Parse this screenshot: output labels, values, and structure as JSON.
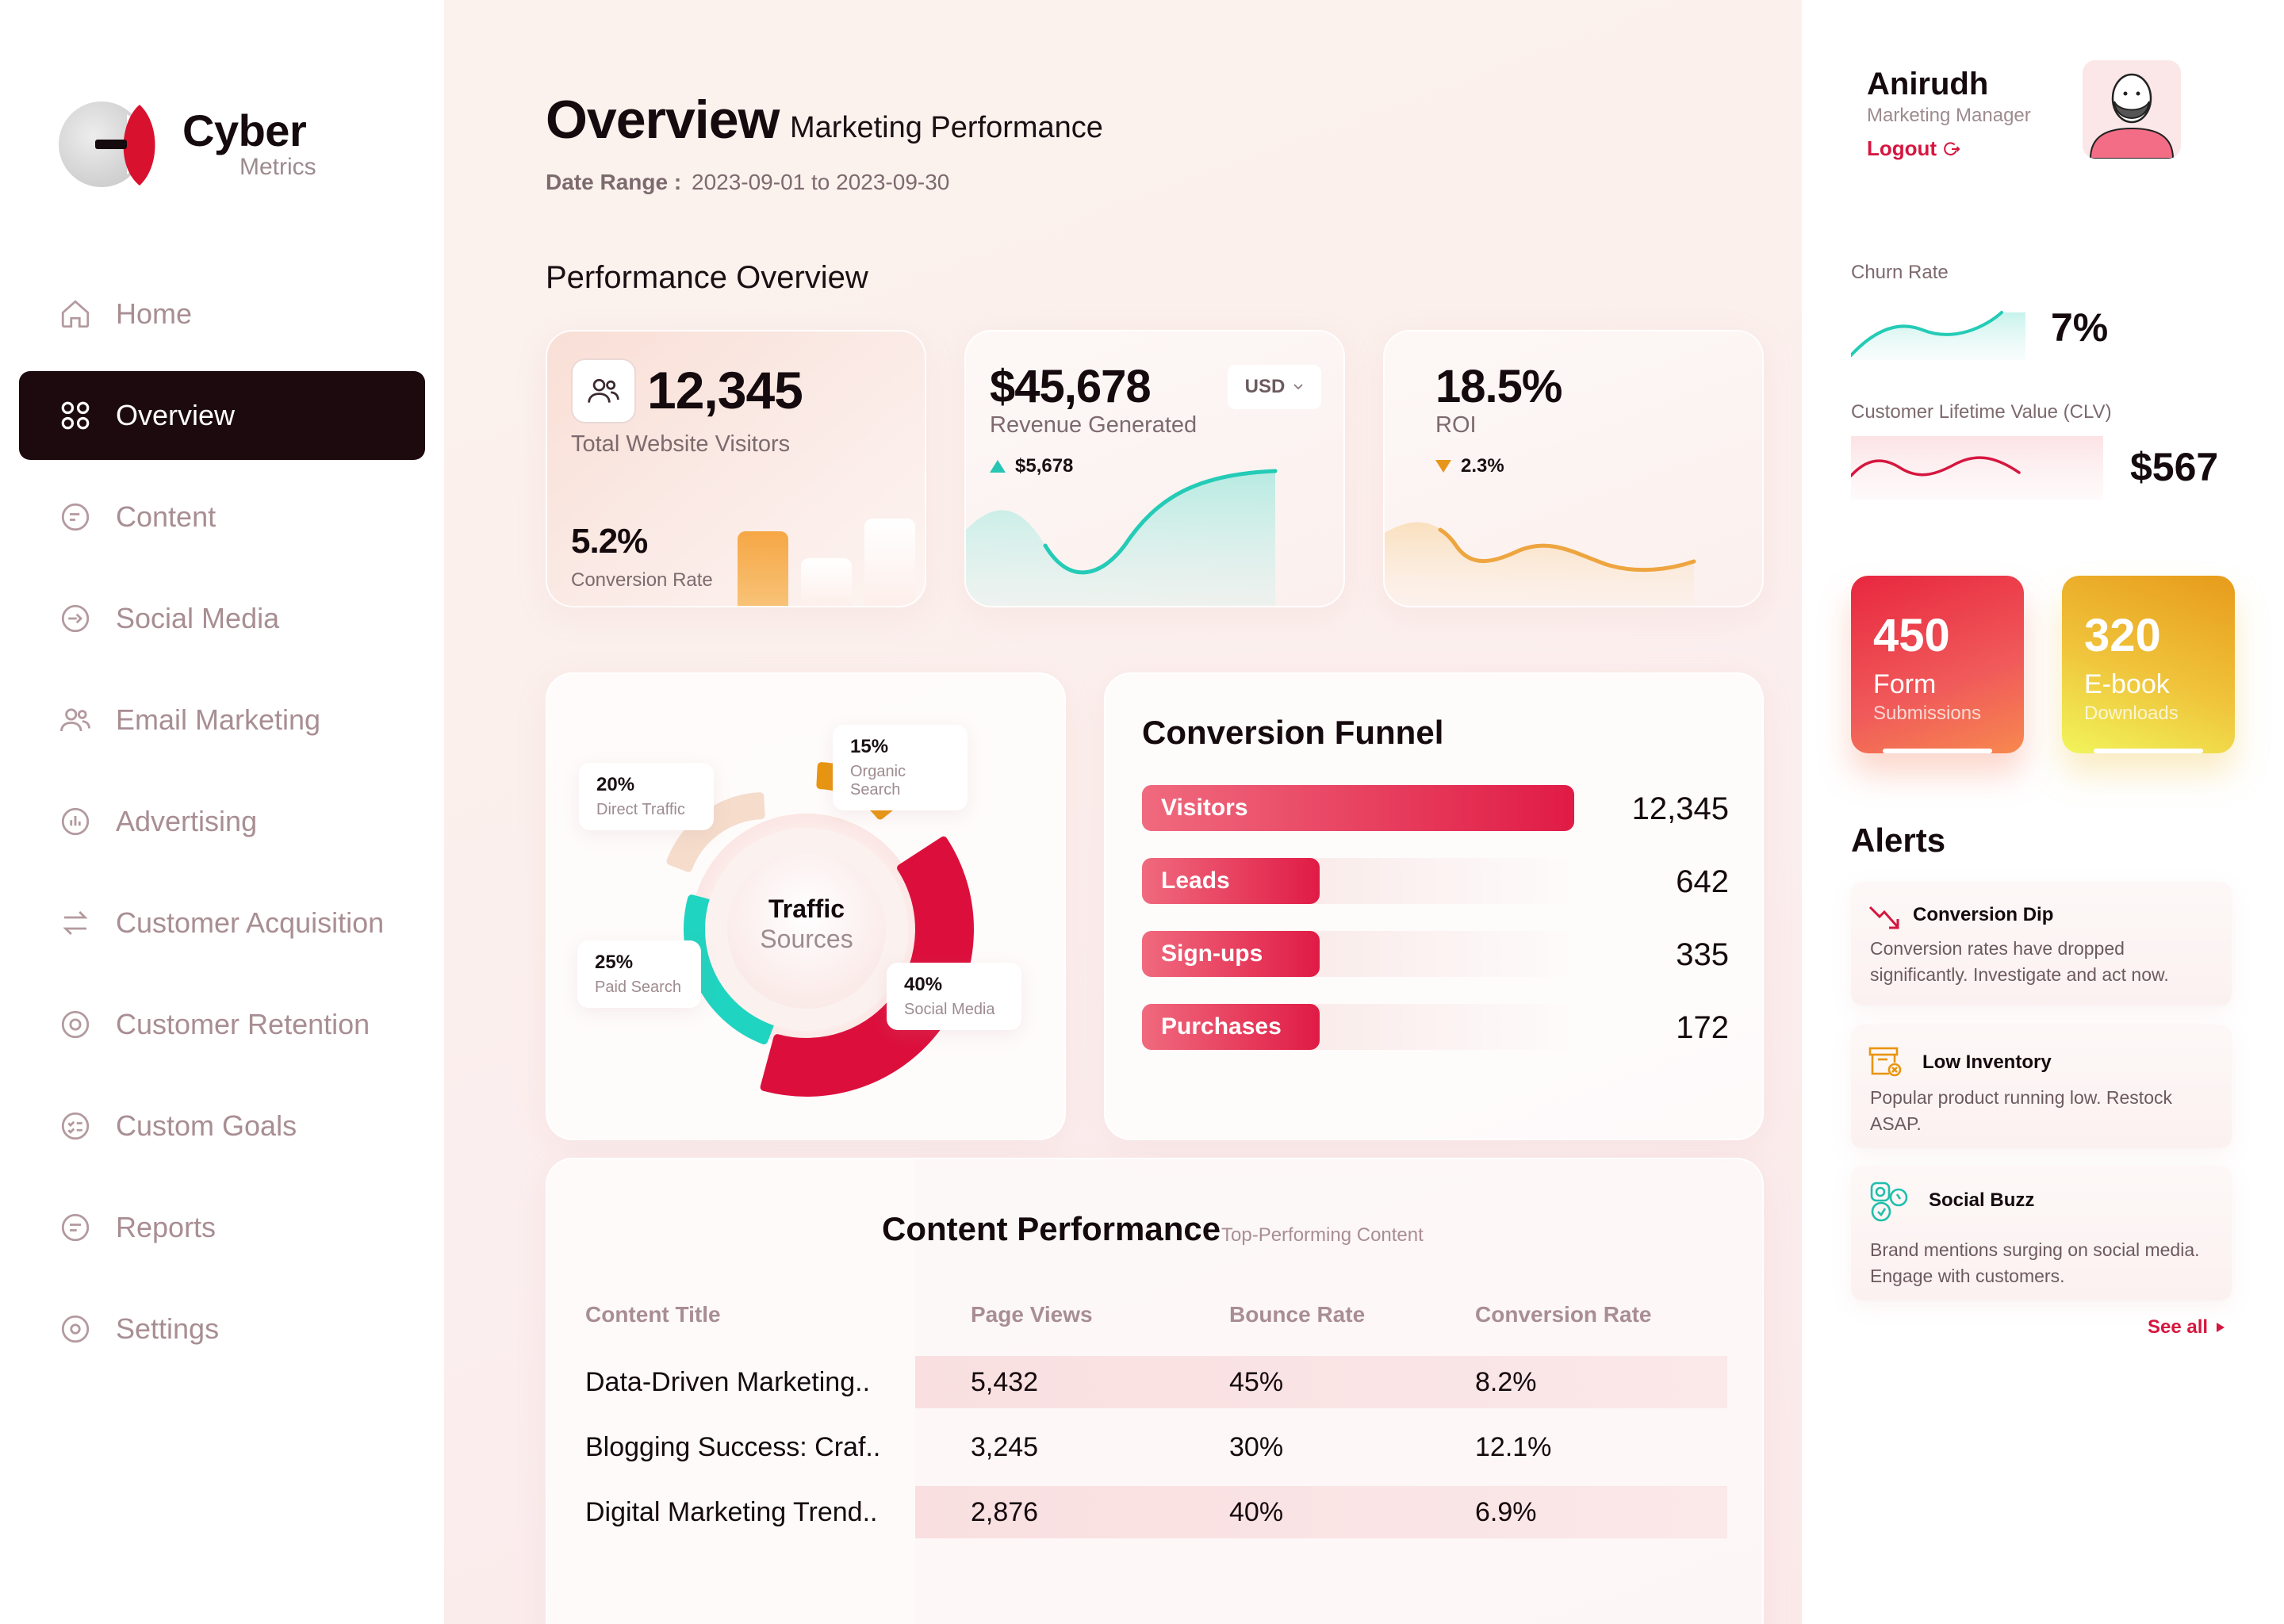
{
  "brand": {
    "name": "Cyber",
    "sub": "Metrics"
  },
  "nav": {
    "items": [
      {
        "label": "Home"
      },
      {
        "label": "Overview"
      },
      {
        "label": "Content"
      },
      {
        "label": "Social Media"
      },
      {
        "label": "Email Marketing"
      },
      {
        "label": "Advertising"
      },
      {
        "label": "Customer Acquisition"
      },
      {
        "label": "Customer Retention"
      },
      {
        "label": "Custom Goals"
      },
      {
        "label": "Reports"
      },
      {
        "label": "Settings"
      }
    ],
    "active_index": 1
  },
  "header": {
    "title": "Overview",
    "subtitle": "Marketing Performance",
    "date_range_label": "Date Range :",
    "date_range_value": "2023-09-01 to 2023-09-30"
  },
  "performance": {
    "section_title": "Performance Overview",
    "visitors": {
      "value": "12,345",
      "label": "Total Website Visitors",
      "conversion_value": "5.2%",
      "conversion_label": "Conversion Rate"
    },
    "revenue": {
      "value": "$45,678",
      "label": "Revenue Generated",
      "currency": "USD",
      "delta": "$5,678"
    },
    "roi": {
      "value": "18.5%",
      "label": "ROI",
      "delta": "2.3%"
    }
  },
  "traffic": {
    "center_line1": "Traffic",
    "center_line2": "Sources",
    "segments": [
      {
        "name": "Direct Traffic",
        "pct": "20%",
        "value": 20,
        "color": "#f5dccb"
      },
      {
        "name": "Organic Search",
        "pct": "15%",
        "value": 15,
        "color": "#e8950f"
      },
      {
        "name": "Social Media",
        "pct": "40%",
        "value": 40,
        "color": "#dc0f3c"
      },
      {
        "name": "Paid Search",
        "pct": "25%",
        "value": 25,
        "color": "#1fd4c0"
      }
    ]
  },
  "funnel": {
    "title": "Conversion Funnel",
    "rows": [
      {
        "label": "Visitors",
        "value": "12,345",
        "n": 12345
      },
      {
        "label": "Leads",
        "value": "642",
        "n": 642
      },
      {
        "label": "Sign-ups",
        "value": "335",
        "n": 335
      },
      {
        "label": "Purchases",
        "value": "172",
        "n": 172
      }
    ]
  },
  "content_perf": {
    "title": "Content Performance",
    "subtitle": "Top-Performing Content",
    "columns": [
      "Content Title",
      "Page Views",
      "Bounce Rate",
      "Conversion Rate"
    ],
    "rows": [
      [
        "Data-Driven Marketing..",
        "5,432",
        "45%",
        "8.2%"
      ],
      [
        "Blogging Success: Craf..",
        "3,245",
        "30%",
        "12.1%"
      ],
      [
        "Digital Marketing Trend..",
        "2,876",
        "40%",
        "6.9%"
      ]
    ]
  },
  "user": {
    "name": "Anirudh",
    "role": "Marketing Manager",
    "logout": "Logout"
  },
  "metrics": {
    "churn": {
      "label": "Churn Rate",
      "value": "7%"
    },
    "clv": {
      "label": "Customer Lifetime Value (CLV)",
      "value": "$567"
    }
  },
  "stats": [
    {
      "value": "450",
      "line1": "Form",
      "line2": "Submissions"
    },
    {
      "value": "320",
      "line1": "E-book",
      "line2": "Downloads"
    }
  ],
  "alerts": {
    "title": "Alerts",
    "items": [
      {
        "title": "Conversion Dip",
        "text": "Conversion rates have dropped significantly. Investigate and act now.",
        "icon": "trend-down-icon"
      },
      {
        "title": "Low Inventory",
        "text": "Popular product running low. Restock ASAP.",
        "icon": "inventory-icon"
      },
      {
        "title": "Social Buzz",
        "text": "Brand mentions surging on social media. Engage with customers.",
        "icon": "social-icon"
      }
    ],
    "see_all": "See all"
  },
  "colors": {
    "accent": "#dc0f3c",
    "dark": "#1c0a0e",
    "teal": "#1fd4c0",
    "orange": "#e8950f"
  }
}
